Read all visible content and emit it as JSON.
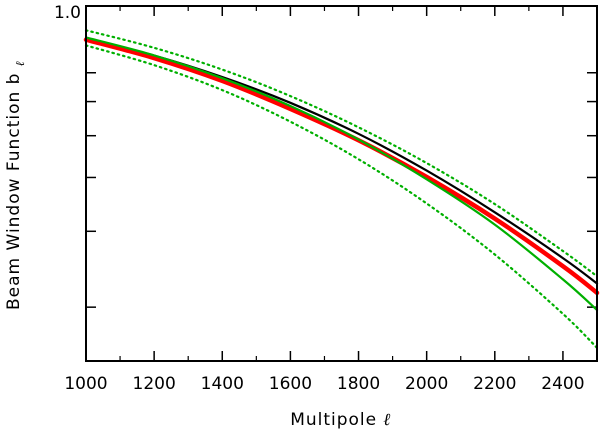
{
  "chart_data": {
    "type": "line",
    "title": "",
    "xlabel": "Multipole",
    "xlabel_symbol": "ℓ",
    "ylabel": "Beam Window Function b",
    "ylabel_sub": "ℓ",
    "xlim": [
      1000,
      2500
    ],
    "ylim": [
      0.15,
      1.0
    ],
    "y_scale": "log",
    "grid": false,
    "legend": "none",
    "x_ticks": [
      1000,
      1200,
      1400,
      1600,
      1800,
      2000,
      2200,
      2400
    ],
    "y_tick_labels": [
      {
        "value": 1.0,
        "label": "1.0"
      }
    ],
    "y_unlabeled_ticks": [
      0.2,
      0.3,
      0.4,
      0.5,
      0.6,
      0.7
    ],
    "series": [
      {
        "color": "#000000",
        "style": "solid",
        "x": [
          1000,
          1200,
          1400,
          1600,
          1800,
          2000,
          2200,
          2400,
          2500
        ],
        "y": [
          0.84,
          0.767,
          0.684,
          0.596,
          0.505,
          0.415,
          0.332,
          0.26,
          0.227
        ]
      },
      {
        "color": "#ff0000",
        "style": "thick",
        "x": [
          1000,
          1200,
          1400,
          1600,
          1800,
          2000,
          2200,
          2400,
          2500
        ],
        "y": [
          0.835,
          0.757,
          0.67,
          0.577,
          0.488,
          0.401,
          0.321,
          0.249,
          0.216
        ]
      },
      {
        "color": "#00b000",
        "style": "solid",
        "x": [
          1000,
          1200,
          1400,
          1600,
          1800,
          2000,
          2200,
          2400,
          2500
        ],
        "y": [
          0.845,
          0.768,
          0.68,
          0.586,
          0.49,
          0.396,
          0.311,
          0.232,
          0.197
        ]
      },
      {
        "color": "#00b000",
        "style": "dotted",
        "x": [
          1000,
          1200,
          1400,
          1600,
          1800,
          2000,
          2200,
          2400,
          2500
        ],
        "y": [
          0.878,
          0.8,
          0.712,
          0.618,
          0.523,
          0.432,
          0.347,
          0.27,
          0.236
        ]
      },
      {
        "color": "#00b000",
        "style": "dotted",
        "x": [
          1000,
          1200,
          1400,
          1600,
          1800,
          2000,
          2200,
          2400,
          2500
        ],
        "y": [
          0.81,
          0.729,
          0.638,
          0.539,
          0.441,
          0.348,
          0.265,
          0.193,
          0.161
        ]
      }
    ]
  }
}
